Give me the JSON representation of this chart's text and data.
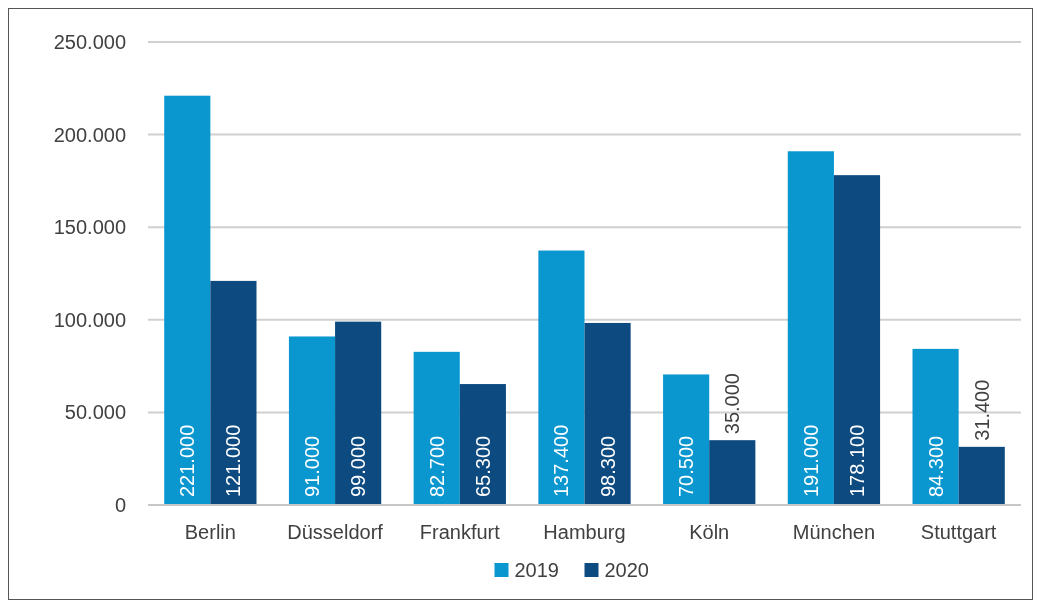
{
  "chart_data": {
    "type": "bar",
    "categories": [
      "Berlin",
      "Düsseldorf",
      "Frankfurt",
      "Hamburg",
      "Köln",
      "München",
      "Stuttgart"
    ],
    "series": [
      {
        "name": "2019",
        "color": "#0a97d0",
        "values": [
          221000,
          91000,
          82700,
          137400,
          70500,
          191000,
          84300
        ],
        "value_labels": [
          "221.000",
          "91.000",
          "82.700",
          "137.400",
          "70.500",
          "191.000",
          "84.300"
        ]
      },
      {
        "name": "2020",
        "color": "#0c4a80",
        "values": [
          121000,
          99000,
          65300,
          98300,
          35000,
          178100,
          31400
        ],
        "value_labels": [
          "121.000",
          "99.000",
          "65.300",
          "98.300",
          "35.000",
          "178.100",
          "31.400"
        ]
      }
    ],
    "ylim": [
      0,
      250000
    ],
    "yticks": [
      0,
      {
        "value": 50000,
        "label": "50.000"
      },
      {
        "value": 100000,
        "label": "100.000"
      },
      {
        "value": 150000,
        "label": "150.000"
      },
      {
        "value": 200000,
        "label": "200.000"
      },
      {
        "value": 250000,
        "label": "250.000"
      }
    ],
    "grid": "y",
    "legend": "bottom"
  }
}
